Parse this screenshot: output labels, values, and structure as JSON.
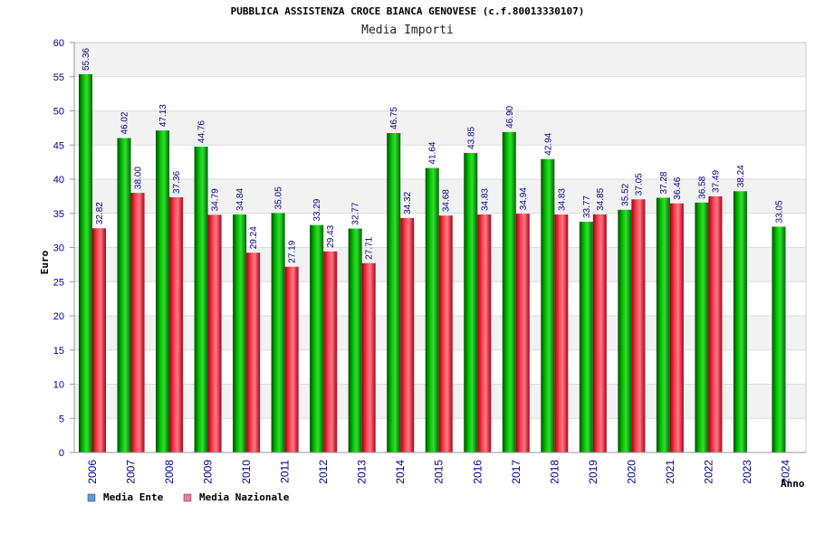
{
  "chart_data": {
    "type": "bar",
    "title": "PUBBLICA ASSISTENZA CROCE BIANCA GENOVESE (c.f.80013330107)",
    "subtitle": "Media Importi",
    "ylabel": "Euro",
    "xlabel": "Anno",
    "ylim": [
      0,
      60
    ],
    "yticks": [
      0,
      5,
      10,
      15,
      20,
      25,
      30,
      35,
      40,
      45,
      50,
      55,
      60
    ],
    "categories": [
      "2006",
      "2007",
      "2008",
      "2009",
      "2010",
      "2011",
      "2012",
      "2013",
      "2014",
      "2015",
      "2016",
      "2017",
      "2018",
      "2019",
      "2020",
      "2021",
      "2022",
      "2023",
      "2024"
    ],
    "series": [
      {
        "name": "Media Ente",
        "color": "#00b000",
        "values": [
          55.36,
          46.02,
          47.13,
          44.76,
          34.84,
          35.05,
          33.29,
          32.77,
          46.75,
          41.64,
          43.85,
          46.9,
          42.94,
          33.77,
          35.52,
          37.28,
          36.58,
          38.24,
          33.05
        ],
        "labels": [
          "55.36",
          "46.02",
          "47.13",
          "44.76",
          "34.84",
          "35.05",
          "33.29",
          "32.77",
          "46.75",
          "41.64",
          "43.85",
          "46.90",
          "42.94",
          "33.77",
          "35.52",
          "37.28",
          "36.58",
          "38.24",
          "33.05"
        ]
      },
      {
        "name": "Media Nazionale",
        "color": "#e02030",
        "values": [
          32.82,
          38.0,
          37.36,
          34.79,
          29.24,
          27.19,
          29.43,
          27.71,
          34.32,
          34.68,
          34.83,
          34.94,
          34.83,
          34.85,
          37.05,
          36.46,
          37.49,
          null,
          null
        ],
        "labels": [
          "32.82",
          "38.00",
          "37.36",
          "34.79",
          "29.24",
          "27.19",
          "29.43",
          "27.71",
          "34.32",
          "34.68",
          "34.83",
          "34.94",
          "34.83",
          "34.85",
          "37.05",
          "36.46",
          "37.49",
          null,
          null
        ]
      }
    ],
    "legend": {
      "placement": "bottom-left",
      "items": [
        {
          "label": "Media Ente",
          "color": "#5b9bd5"
        },
        {
          "label": "Media Nazionale",
          "color": "#e87ca0"
        }
      ]
    },
    "grid": true,
    "band_color": "#f2f2f2"
  }
}
